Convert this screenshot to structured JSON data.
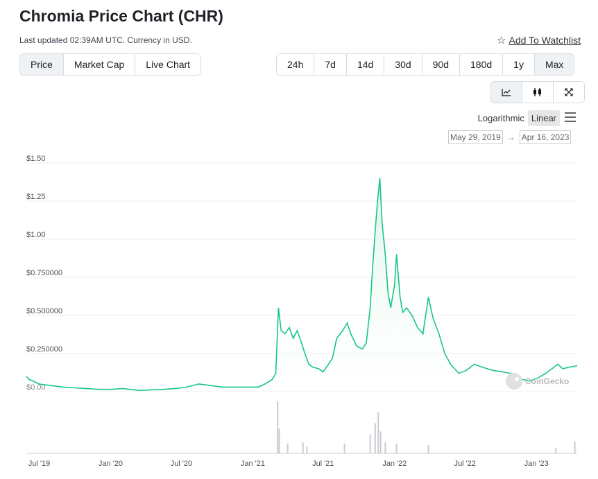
{
  "header": {
    "title": "Chromia Price Chart (CHR)",
    "updated": "Last updated 02:39AM UTC. Currency in USD.",
    "watchlist_label": "Add To Watchlist"
  },
  "view_tabs": [
    "Price",
    "Market Cap",
    "Live Chart"
  ],
  "active_view": "Price",
  "range_tabs": [
    "24h",
    "7d",
    "14d",
    "30d",
    "90d",
    "180d",
    "1y",
    "Max"
  ],
  "active_range": "Max",
  "chart_tools": {
    "items": [
      "line-chart-icon",
      "candlestick-icon",
      "fullscreen-icon"
    ],
    "active": "line-chart-icon"
  },
  "scale": {
    "options": [
      "Logarithmic",
      "Linear"
    ],
    "active": "Linear"
  },
  "date_range": {
    "from": "May 29, 2019",
    "to": "Apr 16, 2023",
    "arrow": "→"
  },
  "colors": {
    "line": "#16c784",
    "area_top": "#d8f3e5",
    "volume": "#c8ccd1",
    "grid": "#eeeeee"
  },
  "watermark": "CoinGecko",
  "chart_data": {
    "type": "area",
    "title": "",
    "xlabel": "",
    "ylabel": "",
    "ylim": [
      0,
      1.5
    ],
    "y_ticks": [
      {
        "value": 0,
        "label": "$0.00"
      },
      {
        "value": 0.25,
        "label": "$0.250000"
      },
      {
        "value": 0.5,
        "label": "$0.500000"
      },
      {
        "value": 0.75,
        "label": "$0.750000"
      },
      {
        "value": 1.0,
        "label": "$1.00"
      },
      {
        "value": 1.25,
        "label": "$1.25"
      },
      {
        "value": 1.5,
        "label": "$1.50"
      }
    ],
    "x_range": [
      "2019-05-29",
      "2023-04-16"
    ],
    "x_ticks": [
      {
        "date": "2019-07-01",
        "label": "Jul '19"
      },
      {
        "date": "2020-01-01",
        "label": "Jan '20"
      },
      {
        "date": "2020-07-01",
        "label": "Jul '20"
      },
      {
        "date": "2021-01-01",
        "label": "Jan '21"
      },
      {
        "date": "2021-07-01",
        "label": "Jul '21"
      },
      {
        "date": "2022-01-01",
        "label": "Jan '22"
      },
      {
        "date": "2022-07-01",
        "label": "Jul '22"
      },
      {
        "date": "2023-01-01",
        "label": "Jan '23"
      }
    ],
    "grid": true,
    "series": [
      {
        "points": [
          [
            "2019-05-29",
            0.1
          ],
          [
            "2019-06-05",
            0.08
          ],
          [
            "2019-06-15",
            0.07
          ],
          [
            "2019-07-01",
            0.05
          ],
          [
            "2019-08-01",
            0.04
          ],
          [
            "2019-09-01",
            0.03
          ],
          [
            "2019-10-01",
            0.025
          ],
          [
            "2019-11-01",
            0.02
          ],
          [
            "2019-12-01",
            0.015
          ],
          [
            "2020-01-01",
            0.015
          ],
          [
            "2020-02-01",
            0.02
          ],
          [
            "2020-03-15",
            0.008
          ],
          [
            "2020-04-15",
            0.012
          ],
          [
            "2020-05-15",
            0.015
          ],
          [
            "2020-06-15",
            0.02
          ],
          [
            "2020-07-15",
            0.03
          ],
          [
            "2020-08-15",
            0.05
          ],
          [
            "2020-09-15",
            0.04
          ],
          [
            "2020-10-15",
            0.03
          ],
          [
            "2020-11-15",
            0.03
          ],
          [
            "2020-12-15",
            0.03
          ],
          [
            "2021-01-15",
            0.03
          ],
          [
            "2021-02-01",
            0.05
          ],
          [
            "2021-02-20",
            0.08
          ],
          [
            "2021-03-01",
            0.12
          ],
          [
            "2021-03-08",
            0.55
          ],
          [
            "2021-03-15",
            0.4
          ],
          [
            "2021-03-25",
            0.38
          ],
          [
            "2021-04-05",
            0.42
          ],
          [
            "2021-04-15",
            0.35
          ],
          [
            "2021-04-25",
            0.4
          ],
          [
            "2021-05-05",
            0.33
          ],
          [
            "2021-05-15",
            0.25
          ],
          [
            "2021-05-25",
            0.18
          ],
          [
            "2021-06-05",
            0.16
          ],
          [
            "2021-06-20",
            0.15
          ],
          [
            "2021-07-01",
            0.13
          ],
          [
            "2021-07-15",
            0.18
          ],
          [
            "2021-07-25",
            0.22
          ],
          [
            "2021-08-05",
            0.35
          ],
          [
            "2021-08-20",
            0.4
          ],
          [
            "2021-09-01",
            0.45
          ],
          [
            "2021-09-10",
            0.38
          ],
          [
            "2021-09-25",
            0.3
          ],
          [
            "2021-10-10",
            0.28
          ],
          [
            "2021-10-20",
            0.32
          ],
          [
            "2021-10-30",
            0.55
          ],
          [
            "2021-11-05",
            0.8
          ],
          [
            "2021-11-12",
            1.05
          ],
          [
            "2021-11-18",
            1.25
          ],
          [
            "2021-11-24",
            1.4
          ],
          [
            "2021-11-30",
            1.1
          ],
          [
            "2021-12-08",
            0.9
          ],
          [
            "2021-12-15",
            0.65
          ],
          [
            "2021-12-22",
            0.55
          ],
          [
            "2022-01-01",
            0.7
          ],
          [
            "2022-01-06",
            0.9
          ],
          [
            "2022-01-15",
            0.62
          ],
          [
            "2022-01-22",
            0.52
          ],
          [
            "2022-02-01",
            0.55
          ],
          [
            "2022-02-15",
            0.5
          ],
          [
            "2022-03-01",
            0.42
          ],
          [
            "2022-03-15",
            0.38
          ],
          [
            "2022-03-29",
            0.62
          ],
          [
            "2022-04-10",
            0.48
          ],
          [
            "2022-04-25",
            0.38
          ],
          [
            "2022-05-10",
            0.25
          ],
          [
            "2022-05-25",
            0.18
          ],
          [
            "2022-06-15",
            0.12
          ],
          [
            "2022-07-05",
            0.14
          ],
          [
            "2022-07-25",
            0.18
          ],
          [
            "2022-08-15",
            0.16
          ],
          [
            "2022-09-10",
            0.14
          ],
          [
            "2022-10-05",
            0.13
          ],
          [
            "2022-10-25",
            0.12
          ],
          [
            "2022-11-10",
            0.09
          ],
          [
            "2022-11-25",
            0.08
          ],
          [
            "2022-12-15",
            0.07
          ],
          [
            "2023-01-05",
            0.09
          ],
          [
            "2023-01-25",
            0.12
          ],
          [
            "2023-02-10",
            0.15
          ],
          [
            "2023-02-25",
            0.18
          ],
          [
            "2023-03-10",
            0.15
          ],
          [
            "2023-03-25",
            0.16
          ],
          [
            "2023-04-16",
            0.17
          ]
        ]
      }
    ],
    "volume": [
      [
        "2021-03-06",
        0.95
      ],
      [
        "2021-03-10",
        0.45
      ],
      [
        "2021-04-01",
        0.18
      ],
      [
        "2021-05-10",
        0.2
      ],
      [
        "2021-05-20",
        0.12
      ],
      [
        "2021-08-25",
        0.18
      ],
      [
        "2021-10-30",
        0.35
      ],
      [
        "2021-11-12",
        0.55
      ],
      [
        "2021-11-20",
        0.75
      ],
      [
        "2021-11-26",
        0.4
      ],
      [
        "2021-12-08",
        0.2
      ],
      [
        "2022-01-06",
        0.18
      ],
      [
        "2022-03-29",
        0.15
      ],
      [
        "2023-02-20",
        0.1
      ],
      [
        "2023-04-10",
        0.22
      ]
    ]
  }
}
